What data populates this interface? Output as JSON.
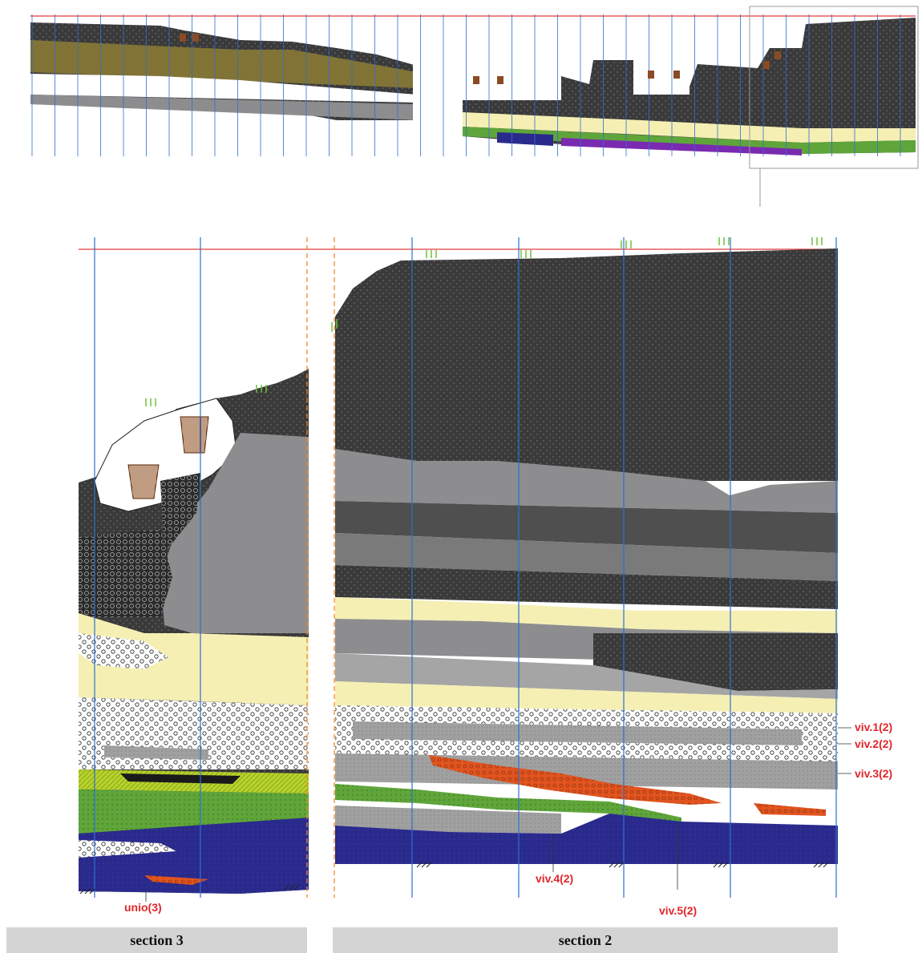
{
  "colors": {
    "dark": "#3d3d3d",
    "dark2": "#4f4f4f",
    "grey": "#8d8d8f",
    "grey2": "#a5a5a5",
    "cream": "#f5efb4",
    "white": "#ffffff",
    "green": "#5fa53a",
    "lime": "#b6d22b",
    "blue": "#2a2a8c",
    "orange": "#e2541f",
    "brown": "#8a4b24",
    "olive": "#8a7a35",
    "purple": "#7a2ab0",
    "red_line": "#e23a3a",
    "grid_line": "#2f6fd0",
    "dashed_line": "#f08a2a",
    "arrow": "#6ec23a"
  },
  "level_labels": [
    {
      "id": "viv1",
      "text": "viv.1(2)"
    },
    {
      "id": "viv2",
      "text": "viv.2(2)"
    },
    {
      "id": "viv3",
      "text": "viv.3(2)"
    },
    {
      "id": "viv4",
      "text": "viv.4(2)"
    },
    {
      "id": "viv5",
      "text": "viv.5(2)"
    },
    {
      "id": "unio3",
      "text": "unio(3)"
    }
  ],
  "sections": [
    {
      "id": "s3",
      "label": "section 3"
    },
    {
      "id": "s2",
      "label": "section 2"
    }
  ]
}
